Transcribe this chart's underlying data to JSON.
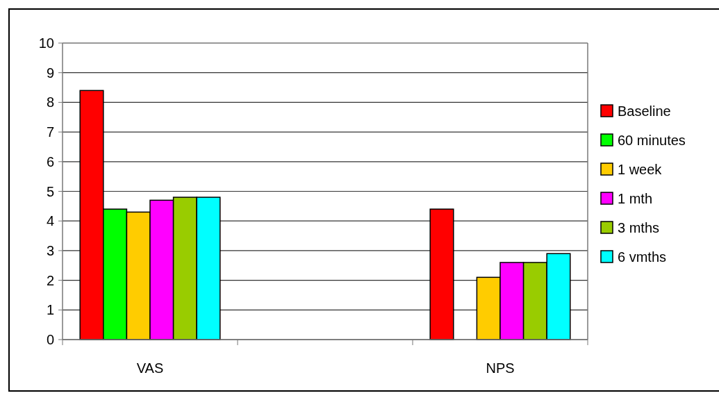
{
  "chart_data": {
    "type": "bar",
    "categories": [
      "VAS",
      null,
      "NPS"
    ],
    "series": [
      {
        "name": "Baseline",
        "color": "#ff0000",
        "values": [
          8.4,
          null,
          4.4
        ]
      },
      {
        "name": "60 minutes",
        "color": "#00ff00",
        "values": [
          4.4,
          null,
          null
        ]
      },
      {
        "name": "1 week",
        "color": "#ffcc00",
        "values": [
          4.3,
          null,
          2.1
        ]
      },
      {
        "name": "1 mth",
        "color": "#ff00ff",
        "values": [
          4.7,
          null,
          2.6
        ]
      },
      {
        "name": "3 mths",
        "color": "#99cc00",
        "values": [
          4.8,
          null,
          2.6
        ]
      },
      {
        "name": "6 vmths",
        "color": "#00ffff",
        "values": [
          4.8,
          null,
          2.9
        ]
      }
    ],
    "ylim": [
      0,
      10
    ],
    "yticks": [
      0,
      1,
      2,
      3,
      4,
      5,
      6,
      7,
      8,
      9,
      10
    ],
    "grid": "y",
    "legend": "right"
  }
}
